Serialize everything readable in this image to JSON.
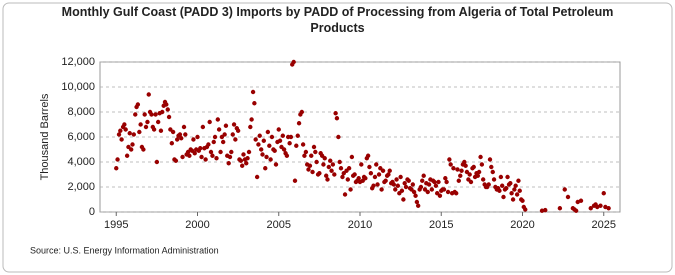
{
  "chart_data": {
    "type": "scatter",
    "title": "Monthly Gulf Coast (PADD 3) Imports by PADD of Processing from Algeria of Total Petroleum Products",
    "y_label": "Thousand Barrels",
    "source": "Source: U.S. Energy Information Administration",
    "xlim": [
      1994,
      2026
    ],
    "xticks": [
      1995,
      2000,
      2005,
      2010,
      2015,
      2020,
      2025
    ],
    "ylim": [
      0,
      12000
    ],
    "yticks": [
      0,
      {
        "value": 2000,
        "label": "2,000"
      },
      {
        "value": 4000,
        "label": "4,000"
      },
      {
        "value": 6000,
        "label": "6,000"
      },
      {
        "value": 8000,
        "label": "8,000"
      },
      {
        "value": 10000,
        "label": "10,000"
      },
      {
        "value": 12000,
        "label": "12,000"
      }
    ],
    "grid": true,
    "color": "#990000",
    "x": [
      1995,
      1995.08,
      1995.17,
      1995.25,
      1995.33,
      1995.42,
      1995.5,
      1995.58,
      1995.67,
      1995.75,
      1995.83,
      1995.92,
      1996,
      1996.08,
      1996.17,
      1996.25,
      1996.33,
      1996.42,
      1996.5,
      1996.58,
      1996.67,
      1996.75,
      1996.83,
      1996.92,
      1997,
      1997.08,
      1997.17,
      1997.25,
      1997.33,
      1997.42,
      1997.5,
      1997.58,
      1997.67,
      1997.75,
      1997.83,
      1997.92,
      1998,
      1998.08,
      1998.17,
      1998.25,
      1998.33,
      1998.42,
      1998.5,
      1998.58,
      1998.67,
      1998.75,
      1998.83,
      1998.92,
      1999,
      1999.08,
      1999.17,
      1999.25,
      1999.33,
      1999.42,
      1999.5,
      1999.58,
      1999.67,
      1999.75,
      1999.83,
      1999.92,
      2000,
      2000.08,
      2000.17,
      2000.25,
      2000.33,
      2000.42,
      2000.5,
      2000.58,
      2000.67,
      2000.75,
      2000.83,
      2000.92,
      2001,
      2001.08,
      2001.17,
      2001.25,
      2001.33,
      2001.42,
      2001.5,
      2001.58,
      2001.67,
      2001.75,
      2001.83,
      2001.92,
      2002,
      2002.08,
      2002.17,
      2002.25,
      2002.33,
      2002.42,
      2002.5,
      2002.58,
      2002.67,
      2002.75,
      2002.83,
      2002.92,
      2003,
      2003.08,
      2003.17,
      2003.25,
      2003.33,
      2003.42,
      2003.5,
      2003.58,
      2003.67,
      2003.75,
      2003.83,
      2003.92,
      2004,
      2004.08,
      2004.17,
      2004.25,
      2004.33,
      2004.42,
      2004.5,
      2004.58,
      2004.67,
      2004.75,
      2004.83,
      2004.92,
      2005,
      2005.08,
      2005.17,
      2005.25,
      2005.33,
      2005.42,
      2005.5,
      2005.58,
      2005.67,
      2005.75,
      2005.83,
      2005.92,
      2006,
      2006.08,
      2006.17,
      2006.25,
      2006.33,
      2006.42,
      2006.5,
      2006.58,
      2006.67,
      2006.75,
      2006.83,
      2006.92,
      2007,
      2007.08,
      2007.17,
      2007.25,
      2007.33,
      2007.42,
      2007.5,
      2007.58,
      2007.67,
      2007.75,
      2007.83,
      2007.92,
      2008,
      2008.08,
      2008.17,
      2008.25,
      2008.33,
      2008.42,
      2008.5,
      2008.58,
      2008.67,
      2008.75,
      2008.83,
      2008.92,
      2009,
      2009.08,
      2009.17,
      2009.25,
      2009.33,
      2009.42,
      2009.5,
      2009.58,
      2009.67,
      2009.75,
      2009.83,
      2009.92,
      2010,
      2010.08,
      2010.17,
      2010.25,
      2010.33,
      2010.42,
      2010.5,
      2010.58,
      2010.67,
      2010.75,
      2010.83,
      2010.92,
      2011,
      2011.08,
      2011.17,
      2011.25,
      2011.33,
      2011.42,
      2011.5,
      2011.58,
      2011.67,
      2011.75,
      2011.83,
      2011.92,
      2012,
      2012.08,
      2012.17,
      2012.25,
      2012.33,
      2012.42,
      2012.5,
      2012.58,
      2012.67,
      2012.75,
      2012.83,
      2012.92,
      2013,
      2013.08,
      2013.17,
      2013.25,
      2013.33,
      2013.42,
      2013.5,
      2013.58,
      2013.67,
      2013.75,
      2013.83,
      2013.92,
      2014,
      2014.08,
      2014.17,
      2014.25,
      2014.33,
      2014.42,
      2014.5,
      2014.58,
      2014.67,
      2014.75,
      2014.83,
      2014.92,
      2015,
      2015.08,
      2015.17,
      2015.25,
      2015.33,
      2015.42,
      2015.5,
      2015.58,
      2015.67,
      2015.75,
      2015.83,
      2015.92,
      2016,
      2016.08,
      2016.17,
      2016.25,
      2016.33,
      2016.42,
      2016.5,
      2016.58,
      2016.67,
      2016.75,
      2016.83,
      2016.92,
      2017,
      2017.08,
      2017.17,
      2017.25,
      2017.33,
      2017.42,
      2017.5,
      2017.58,
      2017.67,
      2017.75,
      2017.83,
      2017.92,
      2018,
      2018.08,
      2018.17,
      2018.25,
      2018.33,
      2018.42,
      2018.5,
      2018.58,
      2018.67,
      2018.75,
      2018.83,
      2018.92,
      2019,
      2019.08,
      2019.17,
      2019.25,
      2019.33,
      2019.42,
      2019.5,
      2019.58,
      2019.67,
      2019.75,
      2019.83,
      2019.92,
      2020,
      2020.08,
      2020.17,
      2021.2,
      2021.4,
      2022.3,
      2022.6,
      2022.8,
      2023.1,
      2023.2,
      2023.3,
      2023.4,
      2023.6,
      2024.2,
      2024.4,
      2024.5,
      2024.6,
      2024.8,
      2025,
      2025.1,
      2025.3
    ],
    "values": [
      3500,
      4200,
      6200,
      6500,
      5800,
      6800,
      7000,
      6600,
      4500,
      5200,
      6300,
      5000,
      5400,
      6200,
      7800,
      8400,
      8600,
      6400,
      7000,
      5200,
      5000,
      7800,
      6800,
      7200,
      9400,
      8000,
      7800,
      6800,
      6600,
      7800,
      4000,
      7200,
      7900,
      6500,
      8000,
      8500,
      8800,
      8600,
      8200,
      7600,
      6600,
      5500,
      6400,
      4200,
      4100,
      5800,
      6100,
      6200,
      5900,
      4400,
      6800,
      6200,
      4600,
      4800,
      4500,
      5000,
      4900,
      5800,
      4700,
      5000,
      6000,
      4900,
      5100,
      4400,
      6800,
      5100,
      4200,
      5200,
      5400,
      7200,
      4800,
      4500,
      5600,
      6000,
      4300,
      7400,
      6600,
      4800,
      6000,
      5600,
      6200,
      6900,
      4500,
      3900,
      4400,
      4800,
      6200,
      7000,
      5800,
      6700,
      6500,
      4200,
      4100,
      3700,
      4600,
      4200,
      3900,
      4300,
      4800,
      6800,
      7400,
      9600,
      8700,
      5800,
      2800,
      5400,
      6100,
      5000,
      4600,
      5700,
      3500,
      4400,
      6400,
      5300,
      4200,
      6000,
      5000,
      4900,
      3800,
      5600,
      6600,
      5700,
      5200,
      6100,
      5000,
      4700,
      4500,
      6000,
      5500,
      6000,
      11800,
      12000,
      2500,
      5300,
      6100,
      7100,
      7800,
      8000,
      5400,
      4500,
      4800,
      3800,
      3400,
      3700,
      4500,
      3200,
      5200,
      4800,
      4000,
      3000,
      3100,
      4700,
      4500,
      3800,
      4300,
      2900,
      2600,
      3600,
      4100,
      3300,
      3800,
      3000,
      7900,
      7500,
      6000,
      4000,
      3500,
      2800,
      3100,
      1400,
      3300,
      2600,
      3500,
      1800,
      4400,
      2900,
      3000,
      2400,
      2500,
      2700,
      2400,
      3800,
      2500,
      2800,
      2700,
      4300,
      4500,
      3600,
      3100,
      1900,
      2100,
      2800,
      3800,
      2200,
      3000,
      3500,
      1800,
      3300,
      2400,
      2500,
      2900,
      3000,
      3300,
      2300,
      2400,
      2200,
      1800,
      2600,
      2100,
      1500,
      2800,
      1700,
      1000,
      2300,
      2000,
      2600,
      2500,
      1900,
      1800,
      2200,
      1600,
      1300,
      800,
      500,
      1800,
      2000,
      2500,
      2900,
      1800,
      2300,
      1600,
      2200,
      2600,
      1800,
      2500,
      2400,
      2100,
      1500,
      2400,
      1300,
      1700,
      1800,
      1800,
      2700,
      2400,
      1600,
      4200,
      3800,
      1500,
      3500,
      1600,
      1500,
      3400,
      2500,
      2900,
      3300,
      3800,
      4000,
      3700,
      3200,
      2600,
      3000,
      2400,
      3500,
      3600,
      2800,
      3100,
      2900,
      3200,
      4400,
      3800,
      2600,
      2200,
      2000,
      2000,
      2200,
      4200,
      3600,
      3200,
      2600,
      2000,
      1800,
      1900,
      1700,
      2800,
      2100,
      1200,
      1800,
      1900,
      2800,
      2200,
      2300,
      1500,
      1000,
      1800,
      2100,
      1400,
      2500,
      1700,
      1000,
      900,
      400,
      200,
      100,
      150,
      300,
      1800,
      1200,
      300,
      200,
      100,
      800,
      900,
      300,
      500,
      600,
      400,
      500,
      1500,
      400,
      300
    ]
  }
}
